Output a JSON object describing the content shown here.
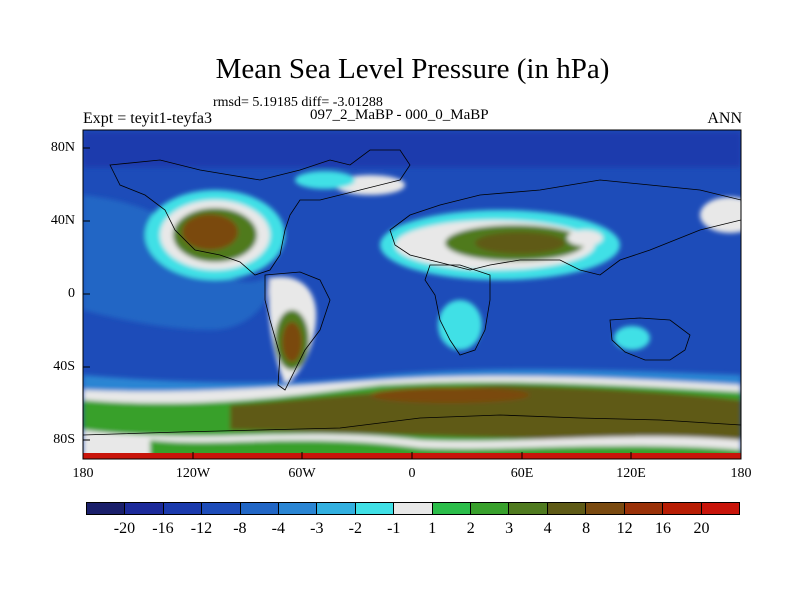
{
  "chart_data": {
    "type": "heatmap",
    "title": "Mean Sea Level Pressure (in hPa)",
    "stats_text": "rmsd= 5.19185 diff= -3.01288",
    "left_label": "Expt = teyit1-teyfa3",
    "center_label": "097_2_MaBP - 000_0_MaBP",
    "right_label": "ANN",
    "x_ticks": [
      "180",
      "120W",
      "60W",
      "0",
      "60E",
      "120E",
      "180"
    ],
    "y_ticks": [
      "80N",
      "40N",
      "0",
      "40S",
      "80S"
    ],
    "xlim": [
      -180,
      180
    ],
    "ylim": [
      -90,
      90
    ],
    "contour_levels": [
      "-20",
      "-16",
      "-12",
      "-8",
      "-4",
      "-3",
      "-2",
      "-1",
      "1",
      "2",
      "3",
      "4",
      "8",
      "12",
      "16",
      "20"
    ],
    "colorbar_colors": [
      "#1a1f6b",
      "#1c2a9a",
      "#1b3aad",
      "#1d4cb9",
      "#2166c5",
      "#2a85d3",
      "#32b0e0",
      "#40e0e6",
      "#e8e8e8",
      "#2bbd4a",
      "#38a02c",
      "#4f7a1f",
      "#5e5a16",
      "#7a4a10",
      "#9a3108",
      "#b81d04",
      "#c8140a"
    ]
  }
}
